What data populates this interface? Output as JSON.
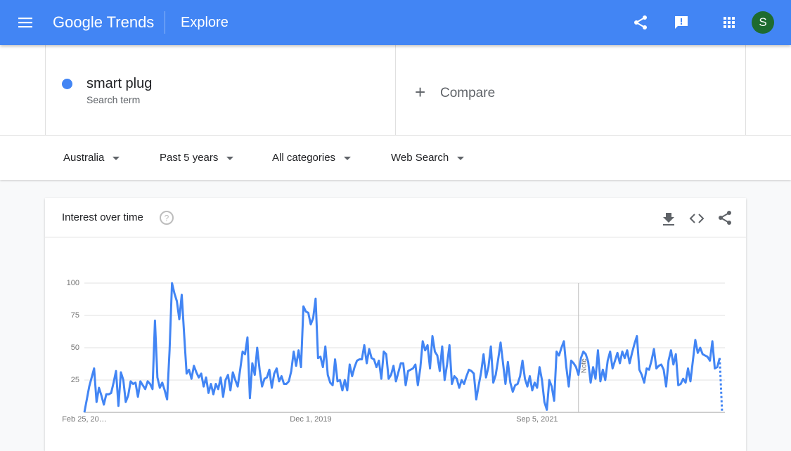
{
  "header": {
    "brand": "Google Trends",
    "page": "Explore",
    "avatar": "S"
  },
  "search": {
    "term": "smart plug",
    "term_type": "Search term",
    "compare": "Compare"
  },
  "filters": [
    "Australia",
    "Past 5 years",
    "All categories",
    "Web Search"
  ],
  "card": {
    "title": "Interest over time"
  },
  "chart_data": {
    "type": "line",
    "color": "#4285f4",
    "grid": true,
    "partial_last": true,
    "ylim": [
      0,
      100
    ],
    "yticks": [
      25,
      50,
      75,
      100
    ],
    "note": {
      "label": "Note",
      "index": 203
    },
    "categories": [
      "Feb 25, 20…",
      null,
      null,
      null,
      null,
      null,
      null,
      null,
      null,
      null,
      null,
      null,
      null,
      null,
      null,
      null,
      null,
      null,
      null,
      null,
      null,
      null,
      null,
      null,
      null,
      null,
      null,
      null,
      null,
      null,
      null,
      null,
      null,
      null,
      null,
      null,
      null,
      null,
      null,
      null,
      null,
      null,
      null,
      null,
      null,
      null,
      null,
      null,
      null,
      null,
      null,
      null,
      null,
      null,
      null,
      null,
      null,
      null,
      null,
      null,
      null,
      null,
      null,
      null,
      null,
      null,
      null,
      null,
      null,
      null,
      null,
      null,
      null,
      null,
      null,
      null,
      null,
      null,
      null,
      null,
      null,
      null,
      null,
      null,
      null,
      null,
      null,
      null,
      null,
      null,
      null,
      null,
      null,
      "Dec 1, 2019",
      null,
      null,
      null,
      null,
      null,
      null,
      null,
      null,
      null,
      null,
      null,
      null,
      null,
      null,
      null,
      null,
      null,
      null,
      null,
      null,
      null,
      null,
      null,
      null,
      null,
      null,
      null,
      null,
      null,
      null,
      null,
      null,
      null,
      null,
      null,
      null,
      null,
      null,
      null,
      null,
      null,
      null,
      null,
      null,
      null,
      null,
      null,
      null,
      null,
      null,
      null,
      null,
      null,
      null,
      null,
      null,
      null,
      null,
      null,
      null,
      null,
      null,
      null,
      null,
      null,
      null,
      null,
      null,
      null,
      null,
      null,
      null,
      null,
      null,
      null,
      null,
      null,
      null,
      null,
      null,
      null,
      null,
      null,
      null,
      null,
      null,
      null,
      null,
      null,
      null,
      null,
      null,
      "Sep 5, 2021",
      null,
      null,
      null,
      null,
      null,
      null,
      null,
      null,
      null,
      null,
      null,
      null,
      null,
      null,
      null,
      null,
      null,
      null,
      null,
      null,
      null,
      null,
      null,
      null,
      null,
      null,
      null,
      null,
      null,
      null,
      null,
      null,
      null,
      null,
      null,
      null,
      null,
      null,
      null,
      null,
      null,
      null,
      null,
      null,
      null,
      null,
      null,
      null,
      null,
      null,
      null,
      null,
      null,
      null,
      null,
      null,
      null,
      null,
      null,
      null,
      null,
      null,
      null,
      null,
      null,
      null,
      null,
      null,
      null,
      null,
      null,
      null,
      null,
      null,
      null,
      null
    ],
    "values": [
      0,
      10,
      20,
      27,
      34,
      8,
      19,
      13,
      6,
      14,
      14,
      15,
      23,
      32,
      5,
      31,
      25,
      8,
      13,
      24,
      22,
      23,
      12,
      24,
      21,
      18,
      24,
      22,
      18,
      71,
      27,
      19,
      23,
      17,
      10,
      48,
      100,
      92,
      86,
      72,
      91,
      60,
      30,
      33,
      26,
      36,
      31,
      27,
      30,
      20,
      27,
      15,
      22,
      14,
      22,
      18,
      27,
      12,
      25,
      29,
      17,
      31,
      25,
      20,
      33,
      47,
      45,
      58,
      11,
      38,
      29,
      50,
      33,
      20,
      26,
      27,
      33,
      19,
      30,
      34,
      24,
      28,
      22,
      22,
      24,
      32,
      47,
      36,
      48,
      35,
      82,
      78,
      77,
      68,
      73,
      88,
      42,
      43,
      35,
      51,
      29,
      23,
      21,
      41,
      24,
      25,
      17,
      25,
      17,
      37,
      28,
      35,
      40,
      41,
      41,
      52,
      38,
      49,
      42,
      41,
      35,
      40,
      26,
      47,
      45,
      26,
      29,
      36,
      24,
      31,
      38,
      38,
      21,
      32,
      33,
      34,
      37,
      21,
      34,
      55,
      48,
      52,
      34,
      59,
      47,
      44,
      32,
      51,
      25,
      37,
      52,
      22,
      28,
      26,
      19,
      25,
      22,
      28,
      33,
      32,
      30,
      10,
      21,
      31,
      45,
      27,
      35,
      51,
      23,
      29,
      41,
      54,
      38,
      22,
      39,
      23,
      16,
      21,
      22,
      28,
      40,
      26,
      20,
      28,
      17,
      23,
      19,
      35,
      25,
      8,
      2,
      25,
      20,
      9,
      47,
      44,
      50,
      55,
      35,
      20,
      40,
      38,
      35,
      29,
      42,
      47,
      45,
      39,
      23,
      35,
      26,
      48,
      24,
      33,
      25,
      40,
      47,
      34,
      40,
      46,
      38,
      47,
      42,
      48,
      38,
      46,
      53,
      59,
      33,
      29,
      23,
      34,
      33,
      40,
      49,
      34,
      36,
      37,
      33,
      20,
      40,
      48,
      37,
      45,
      21,
      22,
      26,
      23,
      34,
      24,
      40,
      56,
      46,
      50,
      45,
      44,
      43,
      40,
      55,
      34,
      35,
      42,
      0
    ]
  }
}
